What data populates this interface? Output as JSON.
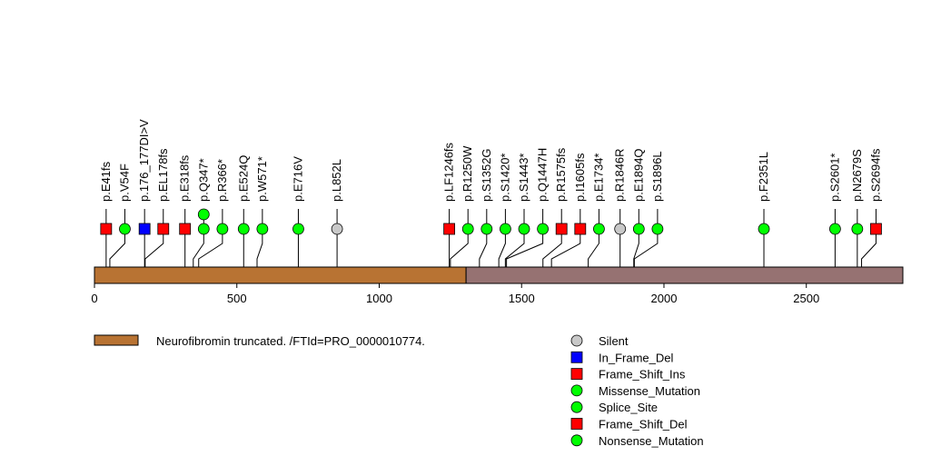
{
  "chart_data": {
    "type": "lollipop",
    "protein_length": 2839,
    "x_ticks": [
      0,
      500,
      1000,
      1500,
      2000,
      2500
    ],
    "domains": [
      {
        "name": "Neurofibromin truncated. /FTId=PRO_0000010774.",
        "start": 1,
        "end": 1305,
        "color": "#b87333"
      },
      {
        "name": "",
        "start": 1306,
        "end": 2839,
        "color": "#967272"
      }
    ],
    "legend": {
      "domain_label": "Neurofibromin truncated. /FTId=PRO_0000010774.",
      "domain_color": "#b87333",
      "mutation_types": [
        {
          "name": "Silent",
          "shape": "circle",
          "color": "#c8c8c8"
        },
        {
          "name": "In_Frame_Del",
          "shape": "square",
          "color": "#0000ff"
        },
        {
          "name": "Frame_Shift_Ins",
          "shape": "square",
          "color": "#ff0000"
        },
        {
          "name": "Missense_Mutation",
          "shape": "circle",
          "color": "#00ff00"
        },
        {
          "name": "Splice_Site",
          "shape": "circle",
          "color": "#00ff00"
        },
        {
          "name": "Frame_Shift_Del",
          "shape": "square",
          "color": "#ff0000"
        },
        {
          "name": "Nonsense_Mutation",
          "shape": "circle",
          "color": "#00ff00"
        }
      ]
    },
    "mutations": [
      {
        "label": "p.E41fs",
        "position": 41,
        "type": "Frame_Shift_Del",
        "count": 1
      },
      {
        "label": "p.V54F",
        "position": 54,
        "type": "Missense_Mutation",
        "count": 1
      },
      {
        "label": "p.176_177DI>V",
        "position": 176,
        "type": "In_Frame_Del",
        "count": 1
      },
      {
        "label": "p.EL178fs",
        "position": 178,
        "type": "Frame_Shift_Ins",
        "count": 1
      },
      {
        "label": "p.E318fs",
        "position": 318,
        "type": "Frame_Shift_Del",
        "count": 1
      },
      {
        "label": "p.Q347*",
        "position": 347,
        "type": "Nonsense_Mutation",
        "count": 2
      },
      {
        "label": "p.R366*",
        "position": 366,
        "type": "Nonsense_Mutation",
        "count": 1
      },
      {
        "label": "p.E524Q",
        "position": 524,
        "type": "Missense_Mutation",
        "count": 1
      },
      {
        "label": "p.W571*",
        "position": 571,
        "type": "Nonsense_Mutation",
        "count": 1
      },
      {
        "label": "p.E716V",
        "position": 716,
        "type": "Missense_Mutation",
        "count": 1
      },
      {
        "label": "p.L852L",
        "position": 852,
        "type": "Silent",
        "count": 1
      },
      {
        "label": "p.LF1246fs",
        "position": 1246,
        "type": "Frame_Shift_Del",
        "count": 1
      },
      {
        "label": "p.R1250W",
        "position": 1250,
        "type": "Missense_Mutation",
        "count": 1
      },
      {
        "label": "p.S1352G",
        "position": 1352,
        "type": "Missense_Mutation",
        "count": 1
      },
      {
        "label": "p.S1420*",
        "position": 1420,
        "type": "Nonsense_Mutation",
        "count": 1
      },
      {
        "label": "p.S1443*",
        "position": 1443,
        "type": "Nonsense_Mutation",
        "count": 1
      },
      {
        "label": "p.Q1447H",
        "position": 1447,
        "type": "Missense_Mutation",
        "count": 1
      },
      {
        "label": "p.R1575fs",
        "position": 1575,
        "type": "Frame_Shift_Del",
        "count": 1
      },
      {
        "label": "p.I1605fs",
        "position": 1605,
        "type": "Frame_Shift_Del",
        "count": 1
      },
      {
        "label": "p.E1734*",
        "position": 1734,
        "type": "Nonsense_Mutation",
        "count": 1
      },
      {
        "label": "p.R1846R",
        "position": 1846,
        "type": "Silent",
        "count": 1
      },
      {
        "label": "p.E1894Q",
        "position": 1894,
        "type": "Missense_Mutation",
        "count": 1
      },
      {
        "label": "p.S1896L",
        "position": 1896,
        "type": "Missense_Mutation",
        "count": 1
      },
      {
        "label": "p.F2351L",
        "position": 2351,
        "type": "Missense_Mutation",
        "count": 1
      },
      {
        "label": "p.S2601*",
        "position": 2601,
        "type": "Nonsense_Mutation",
        "count": 1
      },
      {
        "label": "p.N2679S",
        "position": 2679,
        "type": "Missense_Mutation",
        "count": 1
      },
      {
        "label": "p.S2694fs",
        "position": 2694,
        "type": "Frame_Shift_Del",
        "count": 1
      }
    ]
  }
}
